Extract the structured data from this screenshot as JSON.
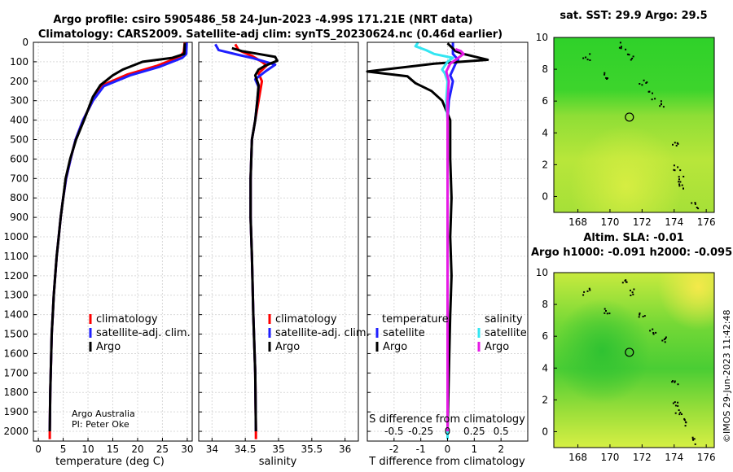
{
  "figure": {
    "title_line1": "Argo profile: csiro 5905486_58 24-Jun-2023 -4.99S 171.21E (NRT data)",
    "title_line2": "Climatology: CARS2009. Satellite-adj clim: synTS_20230624.nc (0.46d earlier)",
    "watermark": "©IMOS 29-Jun-2023 11:42:48",
    "credit_line1": "Argo Australia",
    "credit_line2": "PI: Peter Oke"
  },
  "colors": {
    "climatology": "#ff0000",
    "satellite": "#1f1fff",
    "argo": "#000000",
    "sat_salinity": "#33e6f2",
    "argo_salinity": "#e61ae6"
  },
  "chart_data": [
    {
      "type": "line",
      "id": "temperature",
      "xlabel": "temperature (deg C)",
      "ylabel": "",
      "xlim": [
        -1,
        31
      ],
      "ylim": [
        2050,
        0
      ],
      "xticks": [
        0,
        5,
        10,
        15,
        20,
        25,
        30
      ],
      "yticks": [
        0,
        100,
        200,
        300,
        400,
        500,
        600,
        700,
        800,
        900,
        1000,
        1100,
        1200,
        1300,
        1400,
        1500,
        1600,
        1700,
        1800,
        1900,
        2000
      ],
      "legend": [
        "climatology",
        "satellite-adj. clim.",
        "Argo"
      ],
      "series": [
        {
          "name": "climatology",
          "color": "#ff0000",
          "points": [
            [
              29.5,
              0
            ],
            [
              29.3,
              50
            ],
            [
              28.5,
              75
            ],
            [
              24,
              120
            ],
            [
              18,
              165
            ],
            [
              13,
              220
            ],
            [
              11,
              300
            ],
            [
              9,
              400
            ],
            [
              7.5,
              500
            ],
            [
              6.5,
              600
            ],
            [
              5.6,
              700
            ],
            [
              5,
              800
            ],
            [
              4.5,
              900
            ],
            [
              4.1,
              1000
            ],
            [
              3.7,
              1100
            ],
            [
              3.4,
              1200
            ],
            [
              3.1,
              1300
            ],
            [
              2.9,
              1400
            ],
            [
              2.7,
              1500
            ],
            [
              2.6,
              1600
            ],
            [
              2.5,
              1700
            ],
            [
              2.4,
              1800
            ],
            [
              2.35,
              1900
            ],
            [
              2.3,
              2000
            ],
            [
              2.3,
              2040
            ]
          ]
        },
        {
          "name": "satellite-adj. clim.",
          "color": "#1f1fff",
          "points": [
            [
              29.9,
              0
            ],
            [
              29.8,
              60
            ],
            [
              29,
              80
            ],
            [
              24.5,
              125
            ],
            [
              18.5,
              170
            ],
            [
              13.2,
              225
            ],
            [
              11,
              300
            ],
            [
              9,
              400
            ],
            [
              7.5,
              500
            ],
            [
              6.5,
              600
            ],
            [
              5.6,
              700
            ],
            [
              5,
              800
            ],
            [
              4.5,
              900
            ],
            [
              4.1,
              1000
            ],
            [
              3.7,
              1100
            ],
            [
              3.4,
              1200
            ],
            [
              3.1,
              1300
            ],
            [
              2.9,
              1400
            ],
            [
              2.7,
              1500
            ],
            [
              2.6,
              1600
            ],
            [
              2.5,
              1700
            ],
            [
              2.4,
              1800
            ],
            [
              2.35,
              1900
            ],
            [
              2.3,
              2000
            ]
          ]
        },
        {
          "name": "Argo",
          "color": "#000000",
          "points": [
            [
              29.5,
              5
            ],
            [
              29.4,
              60
            ],
            [
              27,
              80
            ],
            [
              21,
              100
            ],
            [
              17,
              140
            ],
            [
              15,
              170
            ],
            [
              12.5,
              220
            ],
            [
              11,
              280
            ],
            [
              9.2,
              400
            ],
            [
              7.6,
              500
            ],
            [
              6.4,
              600
            ],
            [
              5.5,
              700
            ],
            [
              5,
              800
            ],
            [
              4.5,
              900
            ],
            [
              4.1,
              1000
            ],
            [
              3.7,
              1100
            ],
            [
              3.4,
              1200
            ],
            [
              3.1,
              1300
            ],
            [
              2.9,
              1400
            ],
            [
              2.7,
              1500
            ],
            [
              2.6,
              1600
            ],
            [
              2.5,
              1700
            ],
            [
              2.4,
              1800
            ],
            [
              2.35,
              1900
            ],
            [
              2.3,
              2000
            ]
          ]
        }
      ]
    },
    {
      "type": "line",
      "id": "salinity",
      "xlabel": "salinity",
      "xlim": [
        33.8,
        36.2
      ],
      "ylim": [
        2050,
        0
      ],
      "xticks": [
        34,
        34.5,
        35,
        35.5,
        36
      ],
      "xticklabels": [
        "34",
        "34.5",
        "35",
        "35.5",
        "36"
      ],
      "legend": [
        "climatology",
        "satellite-adj. clim.",
        "Argo"
      ],
      "series": [
        {
          "name": "climatology",
          "color": "#ff0000",
          "points": [
            [
              34.35,
              10
            ],
            [
              34.4,
              40
            ],
            [
              34.6,
              70
            ],
            [
              34.75,
              100
            ],
            [
              34.82,
              120
            ],
            [
              34.7,
              160
            ],
            [
              34.75,
              200
            ],
            [
              34.7,
              300
            ],
            [
              34.65,
              400
            ],
            [
              34.6,
              500
            ],
            [
              34.58,
              700
            ],
            [
              34.58,
              900
            ],
            [
              34.6,
              1100
            ],
            [
              34.62,
              1400
            ],
            [
              34.65,
              1700
            ],
            [
              34.66,
              2000
            ],
            [
              34.66,
              2040
            ]
          ]
        },
        {
          "name": "satellite-adj. clim.",
          "color": "#1f1fff",
          "points": [
            [
              34.05,
              10
            ],
            [
              34.1,
              40
            ],
            [
              34.4,
              65
            ],
            [
              34.6,
              80
            ],
            [
              34.95,
              115
            ],
            [
              34.8,
              150
            ],
            [
              34.65,
              190
            ],
            [
              34.7,
              230
            ],
            [
              34.68,
              300
            ],
            [
              34.65,
              400
            ],
            [
              34.6,
              500
            ],
            [
              34.58,
              700
            ],
            [
              34.58,
              900
            ],
            [
              34.6,
              1100
            ],
            [
              34.62,
              1400
            ],
            [
              34.65,
              1700
            ],
            [
              34.66,
              2000
            ]
          ]
        },
        {
          "name": "Argo",
          "color": "#000000",
          "points": [
            [
              34.3,
              30
            ],
            [
              34.45,
              45
            ],
            [
              34.7,
              60
            ],
            [
              34.95,
              75
            ],
            [
              34.98,
              95
            ],
            [
              34.8,
              120
            ],
            [
              34.7,
              140
            ],
            [
              34.65,
              170
            ],
            [
              34.7,
              220
            ],
            [
              34.68,
              300
            ],
            [
              34.65,
              400
            ],
            [
              34.6,
              500
            ],
            [
              34.58,
              700
            ],
            [
              34.58,
              900
            ],
            [
              34.6,
              1100
            ],
            [
              34.62,
              1400
            ],
            [
              34.65,
              1700
            ],
            [
              34.66,
              2000
            ]
          ]
        }
      ]
    },
    {
      "type": "line",
      "id": "difference",
      "xlabel": "T difference from climatology",
      "xlabel_top": "S difference from climatology",
      "xlim": [
        -3,
        3
      ],
      "ylim": [
        2050,
        0
      ],
      "xticks": [
        -2,
        -1,
        0,
        1,
        2
      ],
      "top_ticks": [
        "-0.5",
        "-0.25",
        "0",
        "0.25",
        "0.5"
      ],
      "top_tick_positions": [
        -2,
        -1,
        0,
        1,
        2
      ],
      "legend_temperature_header": "temperature",
      "legend_salinity_header": "salinity",
      "legend": [
        "satellite",
        "Argo",
        "satellite",
        "Argo"
      ],
      "series": [
        {
          "name": "temperature satellite",
          "color": "#1f1fff",
          "points": [
            [
              0.2,
              0
            ],
            [
              0.2,
              60
            ],
            [
              0.4,
              90
            ],
            [
              0.3,
              110
            ],
            [
              0.2,
              140
            ],
            [
              0.1,
              170
            ],
            [
              0.2,
              200
            ],
            [
              0.05,
              300
            ],
            [
              0,
              400
            ],
            [
              0,
              600
            ],
            [
              0,
              1000
            ],
            [
              0,
              1500
            ],
            [
              0,
              2000
            ]
          ]
        },
        {
          "name": "temperature Argo",
          "color": "#000000",
          "points": [
            [
              0,
              5
            ],
            [
              0.3,
              45
            ],
            [
              0.6,
              60
            ],
            [
              1.2,
              80
            ],
            [
              1.5,
              90
            ],
            [
              -0.5,
              110
            ],
            [
              -3,
              150
            ],
            [
              -1.5,
              175
            ],
            [
              -1.2,
              210
            ],
            [
              -0.6,
              250
            ],
            [
              -0.2,
              300
            ],
            [
              0.1,
              400
            ],
            [
              0.1,
              600
            ],
            [
              0.15,
              800
            ],
            [
              0.1,
              1000
            ],
            [
              0.15,
              1200
            ],
            [
              0.1,
              1400
            ],
            [
              0.05,
              1700
            ],
            [
              0,
              2000
            ]
          ]
        },
        {
          "name": "salinity satellite",
          "color": "#33e6f2",
          "points": [
            [
              -1.1,
              0
            ],
            [
              -1.2,
              20
            ],
            [
              -0.8,
              40
            ],
            [
              -0.5,
              60
            ],
            [
              0.2,
              80
            ],
            [
              0,
              100
            ],
            [
              -0.2,
              140
            ],
            [
              -0.1,
              160
            ],
            [
              0,
              200
            ],
            [
              -0.05,
              300
            ],
            [
              0,
              400
            ],
            [
              0,
              1000
            ],
            [
              0,
              2000
            ],
            [
              0,
              2040
            ]
          ]
        },
        {
          "name": "salinity Argo",
          "color": "#e61ae6",
          "points": [
            [
              0.3,
              35
            ],
            [
              0.5,
              45
            ],
            [
              0.6,
              60
            ],
            [
              0.3,
              90
            ],
            [
              0.1,
              110
            ],
            [
              -0.05,
              150
            ],
            [
              0.05,
              200
            ],
            [
              0,
              300
            ],
            [
              0,
              600
            ],
            [
              0,
              1000
            ],
            [
              0,
              1500
            ],
            [
              0,
              2000
            ]
          ]
        }
      ]
    },
    {
      "type": "heatmap",
      "id": "sst_map",
      "title": "sat. SST: 29.9 Argo: 29.5",
      "xlim": [
        166.5,
        176.5
      ],
      "ylim": [
        -1,
        10
      ],
      "xticks": [
        168,
        170,
        172,
        174,
        176
      ],
      "yticks": [
        0,
        2,
        4,
        6,
        8,
        10
      ],
      "marker": [
        171.21,
        4.99
      ]
    },
    {
      "type": "heatmap",
      "id": "sla_map",
      "title_line1": "Altim. SLA: -0.01",
      "title_line2": "Argo h1000: -0.091 h2000: -0.095",
      "xlim": [
        166.5,
        176.5
      ],
      "ylim": [
        -1,
        10
      ],
      "xticks": [
        168,
        170,
        172,
        174,
        176
      ],
      "yticks": [
        0,
        2,
        4,
        6,
        8,
        10
      ],
      "marker": [
        171.21,
        4.99
      ]
    }
  ]
}
